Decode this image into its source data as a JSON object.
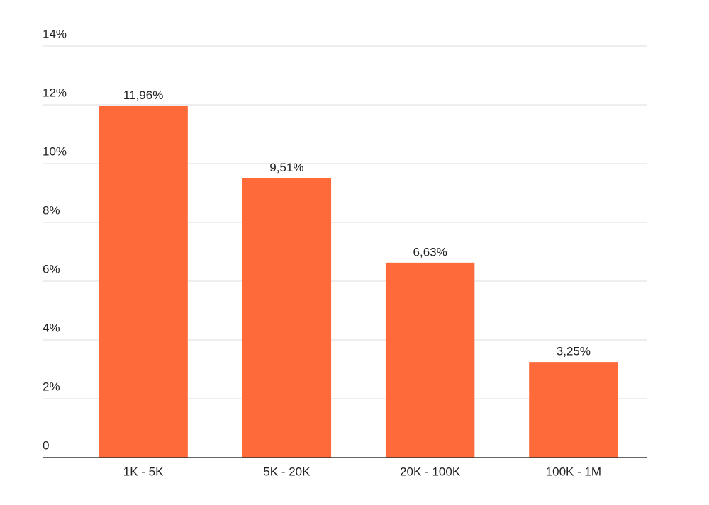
{
  "chart_data": {
    "type": "bar",
    "categories": [
      "1K - 5K",
      "5K - 20K",
      "20K - 100K",
      "100K - 1M"
    ],
    "values": [
      11.96,
      9.51,
      6.63,
      3.25
    ],
    "value_labels": [
      "11,96%",
      "9,51%",
      "6,63%",
      "3,25%"
    ],
    "color": "#fe6a3a",
    "ylim": [
      0,
      14
    ],
    "yticks": [
      0,
      {
        "value": 2,
        "label": "2%"
      },
      {
        "value": 4,
        "label": "4%"
      },
      {
        "value": 6,
        "label": "6%"
      },
      {
        "value": 8,
        "label": "8%"
      },
      {
        "value": 10,
        "label": "10%"
      },
      {
        "value": 12,
        "label": "12%"
      },
      {
        "value": 14,
        "label": "14%"
      }
    ],
    "grid": true
  }
}
